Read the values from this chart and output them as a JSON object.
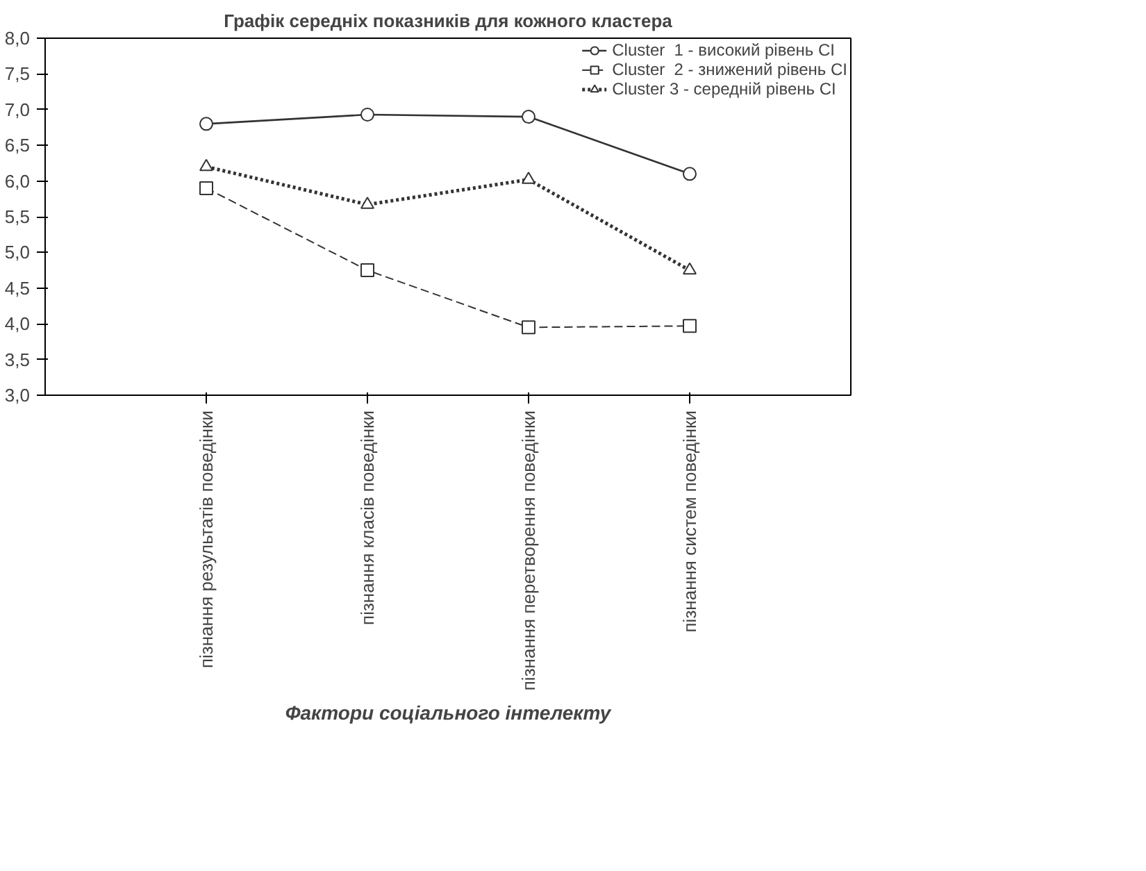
{
  "chart_data": {
    "type": "line",
    "title": "Графік середніх показників для кожного кластера",
    "xlabel": "Фактори соціального інтелекту",
    "categories": [
      "пізнання результатів поведінки",
      "пізнання класів поведінки",
      "пізнання перетворення поведінки",
      "пізнання систем поведінки"
    ],
    "series": [
      {
        "name": "Cluster  1 - високий рівень СІ",
        "color": "#333333",
        "marker": "circle",
        "line_style": "solid",
        "values": [
          6.8,
          6.93,
          6.9,
          6.1
        ]
      },
      {
        "name": "Cluster  2 - знижений рівень СІ",
        "color": "#333333",
        "marker": "square",
        "line_style": "dashed",
        "values": [
          5.9,
          4.75,
          3.95,
          3.97
        ]
      },
      {
        "name": "Cluster 3 - середній рівень СІ",
        "color": "#333333",
        "marker": "triangle",
        "line_style": "dotted",
        "values": [
          6.2,
          5.67,
          6.02,
          4.75
        ]
      }
    ],
    "ylim": [
      3.0,
      8.0
    ],
    "yticks": [
      {
        "value": 3.0,
        "label": "3,0"
      },
      {
        "value": 3.5,
        "label": "3,5"
      },
      {
        "value": 4.0,
        "label": "4,0"
      },
      {
        "value": 4.5,
        "label": "4,5"
      },
      {
        "value": 5.0,
        "label": "5,0"
      },
      {
        "value": 5.5,
        "label": "5,5"
      },
      {
        "value": 6.0,
        "label": "6,0"
      },
      {
        "value": 6.5,
        "label": "6,5"
      },
      {
        "value": 7.0,
        "label": "7,0"
      },
      {
        "value": 7.5,
        "label": "7,5"
      },
      {
        "value": 8.0,
        "label": "8,0"
      }
    ],
    "grid": false,
    "legend": "top right"
  }
}
